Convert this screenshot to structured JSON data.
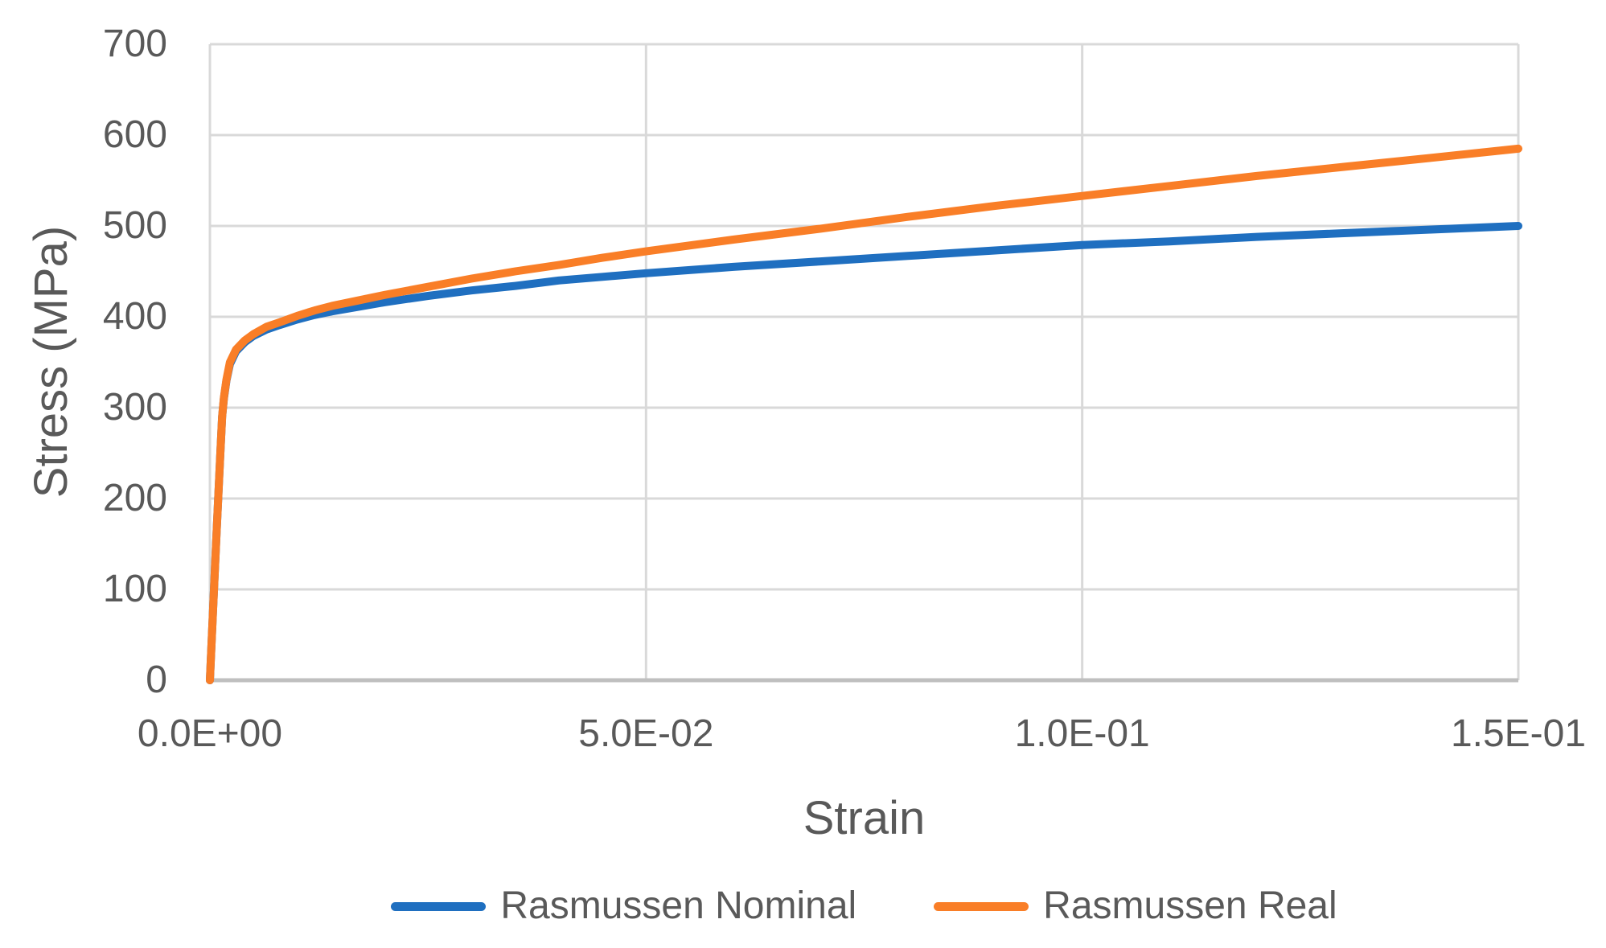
{
  "axes": {
    "x_title": "Strain",
    "y_title": "Stress (MPa)"
  },
  "colors": {
    "gridline": "#D9D9D9",
    "axis_line": "#BFBFBF",
    "text": "#595959",
    "background": "#FFFFFF"
  },
  "chart_data": {
    "type": "line",
    "title": "",
    "xlabel": "Strain",
    "ylabel": "Stress (MPa)",
    "xlim": [
      0,
      0.15
    ],
    "ylim": [
      0,
      700
    ],
    "grid": true,
    "legend_position": "bottom",
    "x_ticks": [
      {
        "value": 0.0,
        "label": "0.0E+00"
      },
      {
        "value": 0.05,
        "label": "5.0E-02"
      },
      {
        "value": 0.1,
        "label": "1.0E-01"
      },
      {
        "value": 0.15,
        "label": "1.5E-01"
      }
    ],
    "y_ticks": [
      {
        "value": 0,
        "label": "0"
      },
      {
        "value": 100,
        "label": "100"
      },
      {
        "value": 200,
        "label": "200"
      },
      {
        "value": 300,
        "label": "300"
      },
      {
        "value": 400,
        "label": "400"
      },
      {
        "value": 500,
        "label": "500"
      },
      {
        "value": 600,
        "label": "600"
      },
      {
        "value": 700,
        "label": "700"
      }
    ],
    "series": [
      {
        "name": "Rasmussen Nominal",
        "color": "#1F6FC0",
        "points": [
          [
            0,
            0
          ],
          [
            0.0004,
            85
          ],
          [
            0.0008,
            170
          ],
          [
            0.0012,
            250
          ],
          [
            0.0014,
            290
          ],
          [
            0.0016,
            310
          ],
          [
            0.0019,
            330
          ],
          [
            0.0023,
            348
          ],
          [
            0.003,
            362
          ],
          [
            0.004,
            372
          ],
          [
            0.005,
            379
          ],
          [
            0.0065,
            386
          ],
          [
            0.008,
            391
          ],
          [
            0.01,
            397
          ],
          [
            0.012,
            402
          ],
          [
            0.014,
            406
          ],
          [
            0.017,
            411
          ],
          [
            0.02,
            416
          ],
          [
            0.025,
            423
          ],
          [
            0.03,
            429
          ],
          [
            0.035,
            434
          ],
          [
            0.04,
            440
          ],
          [
            0.045,
            444
          ],
          [
            0.05,
            448
          ],
          [
            0.06,
            455
          ],
          [
            0.07,
            461
          ],
          [
            0.08,
            467
          ],
          [
            0.09,
            473
          ],
          [
            0.1,
            479
          ],
          [
            0.11,
            483
          ],
          [
            0.12,
            488
          ],
          [
            0.13,
            492
          ],
          [
            0.14,
            496
          ],
          [
            0.15,
            500
          ]
        ]
      },
      {
        "name": "Rasmussen Real",
        "color": "#F97E27",
        "points": [
          [
            0,
            0
          ],
          [
            0.0004,
            85
          ],
          [
            0.0008,
            170
          ],
          [
            0.0012,
            250
          ],
          [
            0.0014,
            290
          ],
          [
            0.0016,
            311
          ],
          [
            0.0019,
            331
          ],
          [
            0.0023,
            350
          ],
          [
            0.003,
            364
          ],
          [
            0.004,
            374
          ],
          [
            0.005,
            381
          ],
          [
            0.0065,
            389
          ],
          [
            0.008,
            394
          ],
          [
            0.01,
            401
          ],
          [
            0.012,
            407
          ],
          [
            0.014,
            412
          ],
          [
            0.017,
            418
          ],
          [
            0.02,
            424
          ],
          [
            0.025,
            433
          ],
          [
            0.03,
            442
          ],
          [
            0.035,
            450
          ],
          [
            0.04,
            457
          ],
          [
            0.045,
            465
          ],
          [
            0.05,
            472
          ],
          [
            0.06,
            485
          ],
          [
            0.07,
            497
          ],
          [
            0.08,
            510
          ],
          [
            0.09,
            522
          ],
          [
            0.1,
            533
          ],
          [
            0.11,
            544
          ],
          [
            0.12,
            555
          ],
          [
            0.13,
            565
          ],
          [
            0.14,
            575
          ],
          [
            0.15,
            585
          ]
        ]
      }
    ]
  }
}
